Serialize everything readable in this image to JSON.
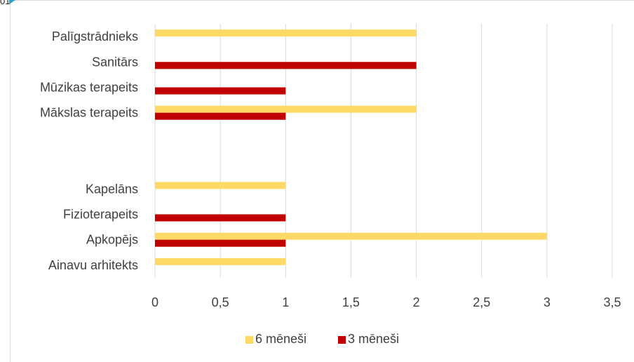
{
  "corner_text": "01",
  "chart_data": {
    "type": "bar",
    "orientation": "horizontal",
    "categories": [
      "Palīgstrādnieks",
      "Sanitārs",
      "Mūzikas terapeits",
      "Mākslas terapeits",
      "",
      "",
      "Kapelāns",
      "Fizioterapeits",
      "Apkopējs",
      "Ainavu arhitekts"
    ],
    "series": [
      {
        "name": "6 mēneši",
        "color": "#ffd966",
        "values": [
          2,
          0,
          0,
          2,
          0,
          0,
          1,
          0,
          3,
          1
        ]
      },
      {
        "name": "3 mēneši",
        "color": "#c00000",
        "values": [
          0,
          2,
          1,
          1,
          0,
          0,
          0,
          1,
          1,
          0
        ]
      }
    ],
    "xlim": [
      0,
      3.5
    ],
    "xticks": [
      "0",
      "0,5",
      "1",
      "1,5",
      "2",
      "2,5",
      "3",
      "3,5"
    ],
    "grid": "vertical",
    "legend": "bottom"
  }
}
